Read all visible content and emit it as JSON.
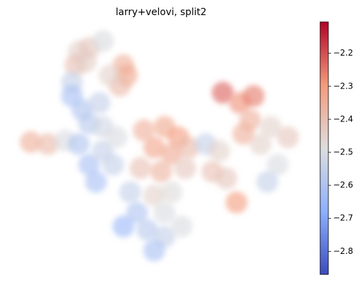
{
  "chart_data": {
    "type": "scatter",
    "title": "larry+velovi, split2",
    "xlim": [
      0,
      430
    ],
    "ylim": [
      0,
      350
    ],
    "x": [
      95,
      110,
      90,
      105,
      130,
      85,
      160,
      165,
      155,
      140,
      85,
      100,
      110,
      125,
      130,
      25,
      50,
      75,
      95,
      110,
      130,
      150,
      145,
      120,
      190,
      220,
      240,
      205,
      230,
      255,
      185,
      215,
      250,
      280,
      290,
      310,
      325,
      300,
      305,
      330,
      350,
      345,
      375,
      400,
      360,
      385,
      370,
      335,
      170,
      205,
      230,
      180,
      220,
      195,
      220,
      205,
      245,
      160
    ],
    "y": [
      315,
      320,
      295,
      300,
      330,
      270,
      295,
      280,
      265,
      280,
      250,
      230,
      210,
      240,
      205,
      183,
      180,
      185,
      180,
      150,
      170,
      190,
      150,
      125,
      200,
      205,
      190,
      175,
      165,
      175,
      145,
      140,
      145,
      180,
      140,
      130,
      95,
      170,
      255,
      240,
      250,
      215,
      205,
      190,
      180,
      150,
      125,
      195,
      110,
      105,
      110,
      80,
      80,
      55,
      45,
      25,
      60,
      60
    ],
    "values": [
      -2.45,
      -2.42,
      -2.4,
      -2.44,
      -2.5,
      -2.55,
      -2.35,
      -2.33,
      -2.38,
      -2.45,
      -2.62,
      -2.6,
      -2.58,
      -2.55,
      -2.52,
      -2.35,
      -2.38,
      -2.5,
      -2.6,
      -2.62,
      -2.55,
      -2.5,
      -2.55,
      -2.62,
      -2.35,
      -2.33,
      -2.3,
      -2.32,
      -2.34,
      -2.38,
      -2.4,
      -2.36,
      -2.42,
      -2.55,
      -2.4,
      -2.42,
      -2.3,
      -2.45,
      -2.22,
      -2.28,
      -2.25,
      -2.35,
      -2.45,
      -2.42,
      -2.45,
      -2.5,
      -2.55,
      -2.35,
      -2.55,
      -2.45,
      -2.48,
      -2.6,
      -2.5,
      -2.58,
      -2.55,
      -2.62,
      -2.5,
      -2.65
    ],
    "clim": [
      -2.87,
      -2.105
    ],
    "colormap": [
      "#3b4cc0",
      "#8db0fe",
      "#dddddd",
      "#f49a7b",
      "#b40426"
    ],
    "cticks": [
      {
        "value": -2.2,
        "label": "−2.2"
      },
      {
        "value": -2.3,
        "label": "−2.3"
      },
      {
        "value": -2.4,
        "label": "−2.4"
      },
      {
        "value": -2.5,
        "label": "−2.5"
      },
      {
        "value": -2.6,
        "label": "−2.6"
      },
      {
        "value": -2.7,
        "label": "−2.7"
      },
      {
        "value": -2.8,
        "label": "−2.8"
      }
    ]
  }
}
